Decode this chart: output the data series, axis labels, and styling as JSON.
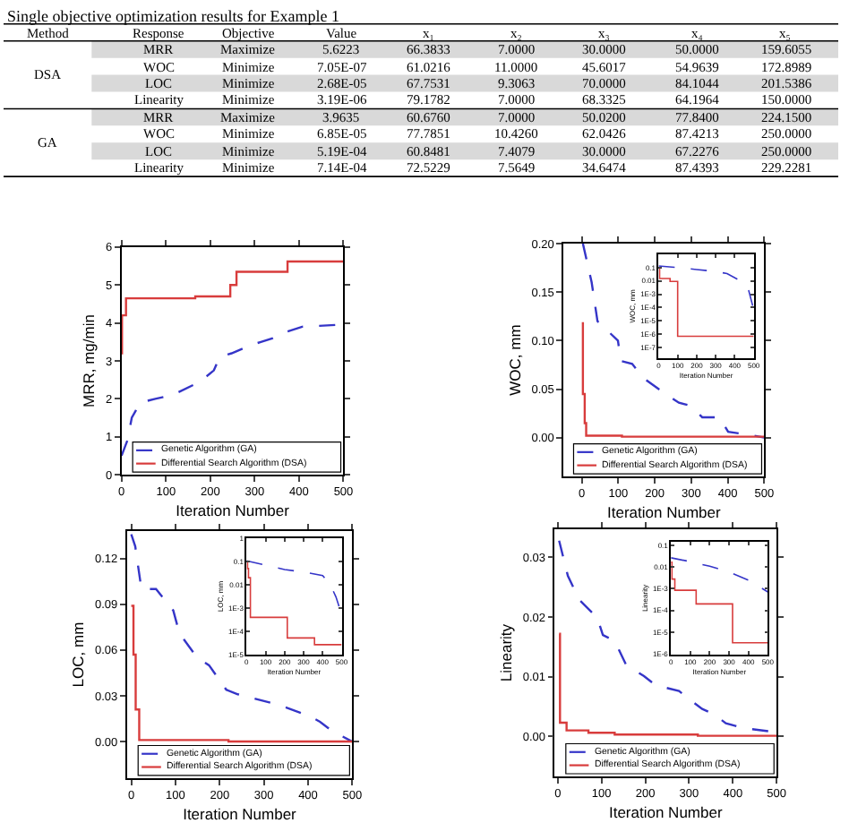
{
  "chart_data": [
    {
      "type": "other",
      "title": "Single objective optimization results for Example 1",
      "categories": [
        "Method",
        "Response",
        "Objective",
        "Value",
        "x₁",
        "x₂",
        "x₃",
        "x₄",
        "x₅"
      ],
      "cells": [
        [
          null,
          "MRR",
          "Maximize",
          "5.6223",
          "66.3833",
          "7.0000",
          "30.0000",
          "50.0000",
          "159.6055"
        ],
        [
          "DSA",
          "WOC",
          "Minimize",
          "7.05E-07",
          "61.0216",
          "11.0000",
          "45.6017",
          "54.9639",
          "172.8989"
        ],
        [
          null,
          "LOC",
          "Minimize",
          "2.68E-05",
          "67.7531",
          "9.3063",
          "70.0000",
          "84.1044",
          "201.5386"
        ],
        [
          null,
          "Linearity",
          "Minimize",
          "3.19E-06",
          "79.1782",
          "7.0000",
          "68.3325",
          "64.1964",
          "150.0000"
        ],
        [
          null,
          "MRR",
          "Maximize",
          "3.9635",
          "60.6760",
          "7.0000",
          "50.0200",
          "77.8400",
          "224.1500"
        ],
        [
          "GA",
          "WOC",
          "Minimize",
          "6.85E-05",
          "77.7851",
          "10.4260",
          "62.0426",
          "87.4213",
          "250.0000"
        ],
        [
          null,
          "LOC",
          "Minimize",
          "5.19E-04",
          "60.8481",
          "7.4079",
          "30.0000",
          "67.2276",
          "250.0000"
        ],
        [
          null,
          "Linearity",
          "Minimize",
          "7.14E-04",
          "72.5229",
          "7.5649",
          "34.6474",
          "87.4393",
          "229.2281"
        ]
      ]
    },
    {
      "type": "line",
      "xlabel": "Iteration Number",
      "ylabel": "MRR, mg/min",
      "xlim": [
        0,
        500
      ],
      "xticks": [
        0,
        100,
        200,
        300,
        400,
        500
      ],
      "ylim": [
        0,
        6
      ],
      "yticks": [
        0,
        1,
        2,
        3,
        4,
        5,
        6
      ],
      "legend": "bottom",
      "grid": false,
      "marker": "none",
      "series": [
        {
          "name": "Genetic Algorithm (GA)",
          "type": "line",
          "line_style": "dashed",
          "color": "#3535c8",
          "x": [
            0,
            13,
            23,
            42,
            76,
            115,
            168,
            182,
            208,
            221,
            248,
            288,
            314,
            341,
            367,
            407,
            500
          ],
          "values": [
            0.5,
            0.9,
            1.5,
            1.9,
            2.0,
            2.1,
            2.4,
            2.5,
            2.75,
            3.1,
            3.2,
            3.4,
            3.5,
            3.6,
            3.75,
            3.9,
            3.96
          ]
        },
        {
          "name": "Differential Search Algorithm (DSA)",
          "type": "step",
          "line_style": "solid",
          "color": "#d83c3c",
          "x": [
            0,
            1,
            10,
            166,
            245,
            259,
            374,
            500
          ],
          "values": [
            3.2,
            4.2,
            4.65,
            4.7,
            5.0,
            5.35,
            5.62,
            5.62
          ]
        }
      ]
    },
    {
      "type": "line",
      "xlabel": "Iteration Number",
      "ylabel": "WOC, mm",
      "xlim": [
        -50,
        500
      ],
      "xticks": [
        0,
        100,
        200,
        300,
        400,
        500
      ],
      "ylim": [
        -0.04,
        0.2
      ],
      "yticks": [
        {
          "value": 0,
          "label": "0.00"
        },
        {
          "value": 0.05,
          "label": "0.05"
        },
        {
          "value": 0.1,
          "label": "0.10"
        },
        {
          "value": 0.15,
          "label": "0.15"
        },
        {
          "value": 0.2,
          "label": "0.20"
        }
      ],
      "legend": "bottom",
      "grid": false,
      "marker": "none",
      "series": [
        {
          "name": "Genetic Algorithm (GA)",
          "type": "line",
          "line_style": "dashed",
          "color": "#3535c8",
          "x": [
            3,
            27,
            43,
            99,
            107,
            138,
            170,
            218,
            266,
            298,
            330,
            377,
            401,
            457,
            500
          ],
          "values": [
            0.2,
            0.16,
            0.12,
            0.1,
            0.079,
            0.076,
            0.061,
            0.048,
            0.036,
            0.033,
            0.021,
            0.021,
            0.006,
            0.003,
            0.0
          ]
        },
        {
          "name": "Differential Search Algorithm (DSA)",
          "type": "step",
          "line_style": "solid",
          "color": "#d83c3c",
          "x": [
            0,
            3,
            8,
            12,
            110,
            500
          ],
          "values": [
            0.118,
            0.045,
            0.015,
            0.002,
            0.001,
            0.001
          ]
        }
      ]
    },
    {
      "type": "line",
      "xlabel": "Iteration Number",
      "ylabel": "WOC, mm",
      "log": "y",
      "xlim": [
        0,
        500
      ],
      "xticks": [
        0,
        100,
        200,
        300,
        400,
        500
      ],
      "ylim": [
        1.6e-08,
        1
      ],
      "yticks": [
        {
          "value": 0.1,
          "label": "0.1"
        },
        {
          "value": 0.01,
          "label": "0.01"
        },
        {
          "value": 0.001,
          "label": "1E-3"
        },
        {
          "value": 0.0001,
          "label": "1E-4"
        },
        {
          "value": 1e-05,
          "label": "1E-5"
        },
        {
          "value": 1e-06,
          "label": "1E-6"
        },
        {
          "value": 1e-07,
          "label": "1E-7"
        }
      ],
      "grid": false,
      "marker": "none",
      "series": [
        {
          "type": "line",
          "line_style": "dashed",
          "color": "#3535c8",
          "x": [
            0,
            100,
            200,
            300,
            360,
            420,
            470,
            500
          ],
          "values": [
            0.13,
            0.1,
            0.07,
            0.05,
            0.035,
            0.012,
            0.003,
            6.85e-05
          ]
        },
        {
          "type": "step",
          "line_style": "solid",
          "color": "#d83c3c",
          "x": [
            0,
            5,
            60,
            100,
            500
          ],
          "values": [
            0.1,
            0.015,
            0.009,
            7.05e-07,
            7.05e-07
          ]
        }
      ]
    },
    {
      "type": "line",
      "xlabel": "Iteration Number",
      "ylabel": "LOC, mm",
      "xlim": [
        -10,
        500
      ],
      "xticks": [
        0,
        100,
        200,
        300,
        400,
        500
      ],
      "ylim": [
        -0.024,
        0.138
      ],
      "yticks": [
        {
          "value": 0,
          "label": "0.00"
        },
        {
          "value": 0.03,
          "label": "0.03"
        },
        {
          "value": 0.06,
          "label": "0.06"
        },
        {
          "value": 0.09,
          "label": "0.09"
        },
        {
          "value": 0.12,
          "label": "0.12"
        }
      ],
      "legend": "bottom",
      "grid": false,
      "marker": "none",
      "series": [
        {
          "name": "Genetic Algorithm (GA)",
          "type": "line",
          "line_style": "dashed",
          "color": "#3535c8",
          "x": [
            0,
            9,
            23,
            56,
            95,
            109,
            149,
            176,
            215,
            241,
            281,
            334,
            401,
            427,
            454,
            500
          ],
          "values": [
            0.136,
            0.128,
            0.1,
            0.1,
            0.086,
            0.071,
            0.055,
            0.05,
            0.034,
            0.031,
            0.028,
            0.024,
            0.017,
            0.013,
            0.007,
            0.0
          ]
        },
        {
          "name": "Differential Search Algorithm (DSA)",
          "type": "step",
          "line_style": "solid",
          "color": "#d83c3c",
          "x": [
            0,
            5,
            10,
            18,
            220,
            500
          ],
          "values": [
            0.089,
            0.057,
            0.021,
            0.001,
            0.0,
            0.0
          ]
        }
      ]
    },
    {
      "type": "line",
      "xlabel": "Iteration Number",
      "ylabel": "LOC, mm",
      "log": "y",
      "xlim": [
        0,
        500
      ],
      "xticks": [
        0,
        100,
        200,
        300,
        400,
        500
      ],
      "ylim": [
        1e-05,
        1
      ],
      "yticks": [
        {
          "value": 1,
          "label": "1"
        },
        {
          "value": 0.1,
          "label": "0.1"
        },
        {
          "value": 0.01,
          "label": "0.01"
        },
        {
          "value": 0.001,
          "label": "1E-3"
        },
        {
          "value": 0.0001,
          "label": "1E-4"
        },
        {
          "value": 1e-05,
          "label": "1E-5"
        }
      ],
      "grid": false,
      "marker": "none",
      "series": [
        {
          "type": "line",
          "line_style": "dashed",
          "color": "#3535c8",
          "x": [
            0,
            100,
            200,
            300,
            400,
            443,
            470,
            500
          ],
          "values": [
            0.107,
            0.07,
            0.045,
            0.035,
            0.025,
            0.009,
            0.003,
            0.000519
          ]
        },
        {
          "type": "step",
          "line_style": "solid",
          "color": "#d83c3c",
          "x": [
            0,
            5,
            10,
            20,
            214,
            357,
            500
          ],
          "values": [
            0.1,
            0.05,
            0.02,
            0.0004,
            5.2e-05,
            2.68e-05,
            2.68e-05
          ]
        }
      ]
    },
    {
      "type": "line",
      "xlabel": "Iteration Number",
      "ylabel": "Linearity",
      "xlim": [
        -7,
        500
      ],
      "xticks": [
        0,
        100,
        200,
        300,
        400,
        500
      ],
      "ylim": [
        -0.0067,
        0.0347
      ],
      "yticks": [
        {
          "value": 0,
          "label": "0.00"
        },
        {
          "value": 0.01,
          "label": "0.01"
        },
        {
          "value": 0.02,
          "label": "0.02"
        },
        {
          "value": 0.03,
          "label": "0.03"
        }
      ],
      "legend": "bottom",
      "grid": false,
      "marker": "none",
      "series": [
        {
          "name": "Genetic Algorithm (GA)",
          "type": "line",
          "line_style": "dashed",
          "color": "#3535c8",
          "x": [
            3,
            23,
            49,
            90,
            103,
            130,
            156,
            197,
            223,
            277,
            303,
            330,
            357,
            384,
            424,
            500
          ],
          "values": [
            0.0328,
            0.0269,
            0.0229,
            0.0199,
            0.017,
            0.016,
            0.012,
            0.0101,
            0.0086,
            0.0076,
            0.0061,
            0.0046,
            0.0037,
            0.0022,
            0.0014,
            0.0007
          ]
        },
        {
          "name": "Differential Search Algorithm (DSA)",
          "type": "step",
          "line_style": "solid",
          "color": "#d83c3c",
          "x": [
            3,
            5,
            20,
            70,
            130,
            320,
            500
          ],
          "values": [
            0.0172,
            0.0023,
            0.001,
            0.0006,
            0.0003,
            0.0001,
            0.0001
          ]
        }
      ]
    },
    {
      "type": "line",
      "xlabel": "Iteration Number",
      "ylabel": "Linearity",
      "log": "y",
      "xlim": [
        0,
        500
      ],
      "xticks": [
        0,
        100,
        200,
        300,
        400,
        500
      ],
      "ylim": [
        9e-07,
        0.15
      ],
      "yticks": [
        {
          "value": 0.1,
          "label": "0.1"
        },
        {
          "value": 0.01,
          "label": "0.01"
        },
        {
          "value": 0.001,
          "label": "1E-3"
        },
        {
          "value": 0.0001,
          "label": "1E-4"
        },
        {
          "value": 1e-05,
          "label": "1E-5"
        },
        {
          "value": 1e-06,
          "label": "1E-6"
        }
      ],
      "grid": false,
      "marker": "none",
      "series": [
        {
          "type": "line",
          "line_style": "dashed",
          "color": "#3535c8",
          "x": [
            0,
            100,
            200,
            300,
            400,
            500
          ],
          "values": [
            0.027,
            0.018,
            0.011,
            0.006,
            0.0025,
            0.000714
          ]
        },
        {
          "type": "step",
          "line_style": "solid",
          "color": "#d83c3c",
          "x": [
            0,
            5,
            20,
            130,
            318,
            500
          ],
          "values": [
            0.017,
            0.0028,
            0.00085,
            0.0002,
            3.19e-06,
            3.19e-06
          ]
        }
      ]
    }
  ]
}
